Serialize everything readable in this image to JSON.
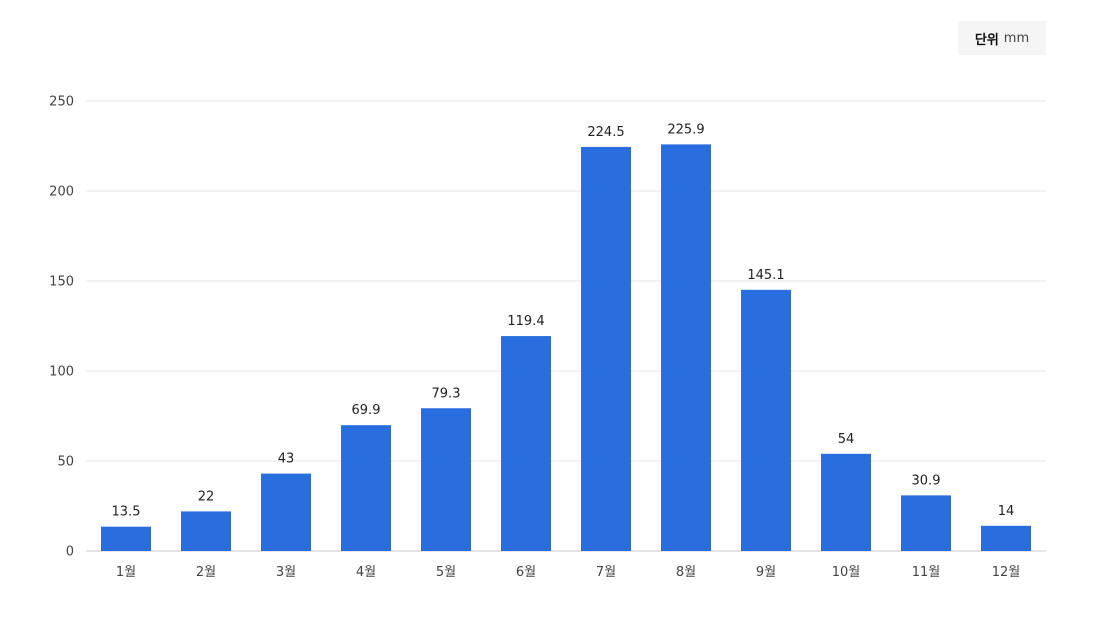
{
  "unit": {
    "label": "단위",
    "value": "mm"
  },
  "colors": {
    "bar": "#2a6ddf",
    "grid": "#e6e6e6",
    "axis": "#cccccc"
  },
  "chart_data": {
    "type": "bar",
    "title": "",
    "xlabel": "",
    "ylabel": "",
    "ylim": [
      0,
      250
    ],
    "yticks": [
      0,
      50,
      100,
      150,
      200,
      250
    ],
    "grid": true,
    "categories": [
      "1월",
      "2월",
      "3월",
      "4월",
      "5월",
      "6월",
      "7월",
      "8월",
      "9월",
      "10월",
      "11월",
      "12월"
    ],
    "values": [
      13.5,
      22,
      43,
      69.9,
      79.3,
      119.4,
      224.5,
      225.9,
      145.1,
      54,
      30.9,
      14
    ],
    "value_labels": [
      "13.5",
      "22",
      "43",
      "69.9",
      "79.3",
      "119.4",
      "224.5",
      "225.9",
      "145.1",
      "54",
      "30.9",
      "14"
    ]
  }
}
